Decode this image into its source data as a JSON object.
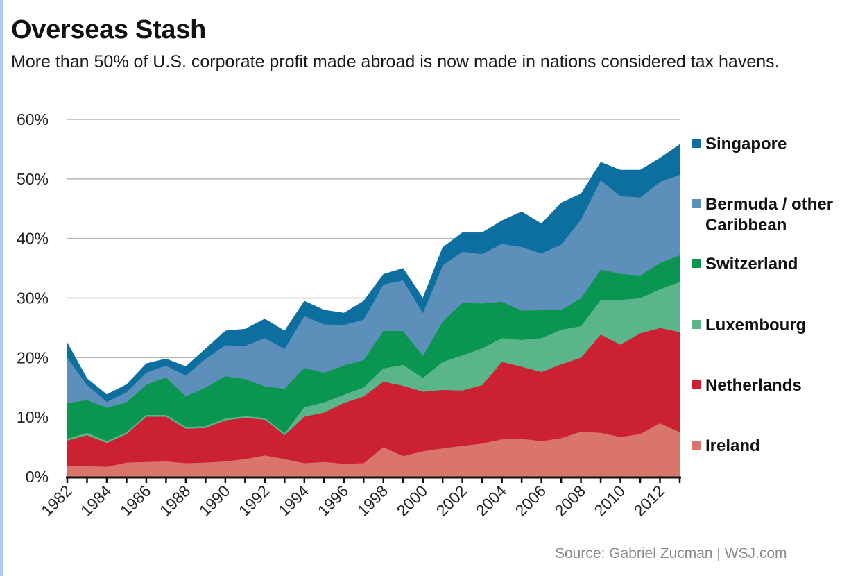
{
  "header": {
    "title": "Overseas Stash",
    "subtitle": "More than 50% of U.S. corporate profit made abroad is now made in nations considered tax havens."
  },
  "footer": {
    "source": "Source: Gabriel Zucman  |  WSJ.com"
  },
  "chart_data": {
    "type": "area",
    "stacked": true,
    "title": "Overseas Stash",
    "subtitle": "More than 50% of U.S. corporate profit made abroad is now made in nations considered tax havens.",
    "xlabel": "",
    "ylabel": "",
    "ylim": [
      0,
      60
    ],
    "yticks": [
      0,
      10,
      20,
      30,
      40,
      50,
      60
    ],
    "ytick_labels": [
      "0%",
      "10%",
      "20%",
      "30%",
      "40%",
      "50%",
      "60%"
    ],
    "xlim": [
      1982,
      2013
    ],
    "xtick_labels": [
      "1982",
      "1984",
      "1986",
      "1988",
      "1990",
      "1992",
      "1994",
      "1996",
      "1998",
      "2000",
      "2002",
      "2004",
      "2006",
      "2008",
      "2010",
      "2012"
    ],
    "grid": true,
    "legend_position": "right",
    "x": [
      1982,
      1983,
      1984,
      1985,
      1986,
      1987,
      1988,
      1989,
      1990,
      1991,
      1992,
      1993,
      1994,
      1995,
      1996,
      1997,
      1998,
      1999,
      2000,
      2001,
      2002,
      2003,
      2004,
      2005,
      2006,
      2007,
      2008,
      2009,
      2010,
      2011,
      2012,
      2013
    ],
    "series": [
      {
        "name": "Ireland",
        "color": "#d9756a",
        "values": [
          1.8,
          1.8,
          1.7,
          2.4,
          2.5,
          2.6,
          2.3,
          2.4,
          2.6,
          3.0,
          3.6,
          3.0,
          2.3,
          2.5,
          2.2,
          2.3,
          5.0,
          3.5,
          4.3,
          4.8,
          5.2,
          5.6,
          6.3,
          6.4,
          6.0,
          6.5,
          7.6,
          7.4,
          6.7,
          7.2,
          9.0,
          7.5
        ]
      },
      {
        "name": "Netherlands",
        "color": "#cc2033",
        "values": [
          4.3,
          5.2,
          4.0,
          4.8,
          7.6,
          7.5,
          5.8,
          5.8,
          6.9,
          6.9,
          6.0,
          4.0,
          7.8,
          8.3,
          10.2,
          11.2,
          11.0,
          11.8,
          10.0,
          9.8,
          9.3,
          9.8,
          13.0,
          12.1,
          11.6,
          12.4,
          12.4,
          16.5,
          15.5,
          16.9,
          16.0,
          16.8
        ]
      },
      {
        "name": "Luxembourg",
        "color": "#5ab58a",
        "values": [
          0.3,
          0.4,
          0.3,
          0.3,
          0.3,
          0.3,
          0.3,
          0.3,
          0.3,
          0.3,
          0.3,
          0.3,
          1.6,
          1.7,
          1.4,
          1.5,
          2.2,
          3.5,
          2.3,
          4.7,
          5.9,
          6.2,
          4.0,
          4.5,
          5.7,
          5.8,
          5.3,
          5.8,
          7.5,
          5.9,
          6.5,
          8.4
        ]
      },
      {
        "name": "Switzerland",
        "color": "#0a9650",
        "values": [
          6.0,
          5.5,
          5.6,
          5.0,
          5.1,
          6.3,
          5.1,
          6.5,
          7.1,
          6.2,
          5.3,
          7.5,
          6.6,
          5.0,
          4.9,
          4.6,
          6.3,
          5.7,
          3.7,
          6.8,
          8.8,
          7.5,
          6.1,
          4.9,
          4.7,
          3.3,
          4.7,
          5.1,
          4.4,
          3.8,
          4.4,
          4.5
        ]
      },
      {
        "name": "Bermuda / other Caribbean",
        "color": "#5d8fbb",
        "values": [
          7.6,
          2.5,
          1.0,
          1.7,
          2.0,
          2.0,
          3.5,
          4.8,
          5.2,
          5.6,
          8.1,
          6.7,
          8.7,
          8.1,
          6.8,
          6.8,
          7.8,
          8.5,
          7.2,
          9.4,
          8.6,
          8.3,
          9.7,
          10.7,
          9.5,
          11.0,
          13.2,
          15.0,
          13.0,
          13.1,
          13.6,
          13.5
        ]
      },
      {
        "name": "Singapore",
        "color": "#0d6fa0",
        "values": [
          2.5,
          1.1,
          1.2,
          1.3,
          1.5,
          1.1,
          1.5,
          1.7,
          2.4,
          2.8,
          3.2,
          3.0,
          2.5,
          2.4,
          2.0,
          3.1,
          1.7,
          2.0,
          2.5,
          3.0,
          3.2,
          3.6,
          3.9,
          5.9,
          5.0,
          7.0,
          4.3,
          3.0,
          4.4,
          4.6,
          4.0,
          5.1
        ]
      }
    ]
  }
}
